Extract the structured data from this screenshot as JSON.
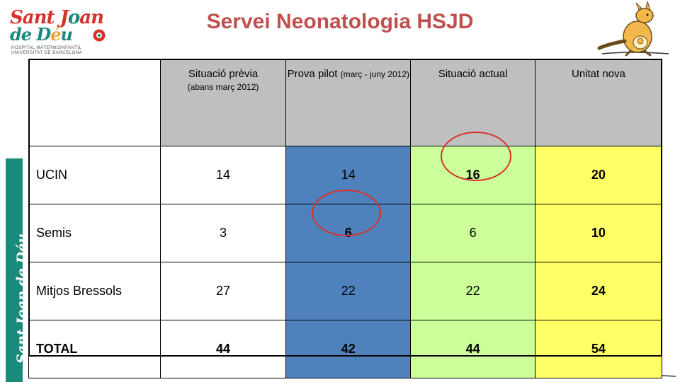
{
  "title": "Servei Neonatologia HSJD",
  "logo": {
    "line1a": "Sant J",
    "line1b": "o",
    "line1c": "an",
    "line2a": "de D",
    "line2b": "é",
    "line2c": "u",
    "sub1": "HOSPITAL MATERNOINFANTIL",
    "sub2": "UNIVERSITAT DE BARCELONA"
  },
  "sidebar_text": "Sant Joan de Déu",
  "table": {
    "headers": [
      {
        "main": "",
        "sub": ""
      },
      {
        "main": "Situació prèvia",
        "sub": "(abans març 2012)"
      },
      {
        "main": "Prova pilot ",
        "sub_inline": "(març - juny 2012)"
      },
      {
        "main": "Situació actual",
        "sub": ""
      },
      {
        "main": "Unitat nova",
        "sub": ""
      }
    ],
    "rows": [
      {
        "label": "UCIN",
        "values": [
          "14",
          "14",
          "16",
          "20"
        ]
      },
      {
        "label": "Semis",
        "values": [
          "3",
          "6",
          "6",
          "10"
        ]
      },
      {
        "label": "Mitjos Bressols",
        "values": [
          "27",
          "22",
          "22",
          "24"
        ]
      },
      {
        "label": "TOTAL",
        "values": [
          "44",
          "42",
          "44",
          "54"
        ]
      }
    ]
  },
  "colors": {
    "title": "#c0504d",
    "header_bg": "#bfbfbf",
    "pilot_col": "#4f81bd",
    "actual_col": "#ccff99",
    "new_col": "#ffff66",
    "highlight_circle": "#d6322b",
    "brand_green": "#1a8a7a"
  },
  "icons": [
    "hospital-logo",
    "kangaroo-mascot-icon",
    "kangaroo-footer-icon"
  ]
}
